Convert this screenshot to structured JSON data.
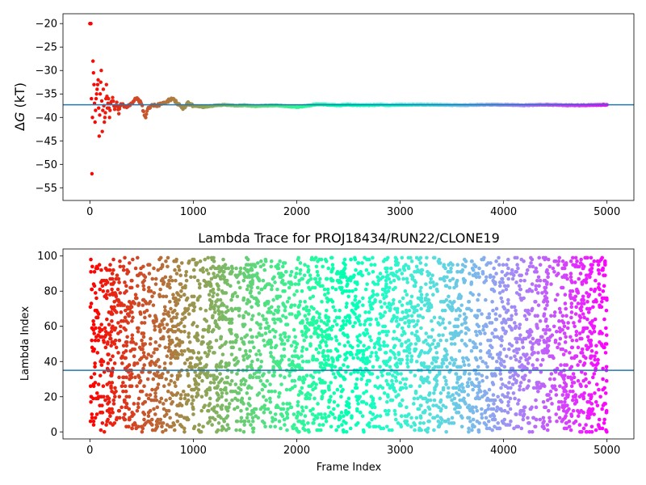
{
  "chart_data": [
    {
      "type": "scatter",
      "title": "",
      "xlabel": "",
      "ylabel": "ΔG (kT)",
      "ylabel_parts": {
        "delta": "Δ",
        "var": "G",
        "unit": " (kT)"
      },
      "xlim": [
        -260,
        5260
      ],
      "ylim": [
        -57.7,
        -17.9
      ],
      "xticks": [
        0,
        1000,
        2000,
        3000,
        4000,
        5000
      ],
      "yticks": [
        -20,
        -25,
        -30,
        -35,
        -40,
        -45,
        -50,
        -55
      ],
      "hline": -37.3,
      "hline_color": "#1f77b4",
      "colormap": "rainbow (frame index: red at 0 → violet at 5000)",
      "grid": false,
      "legend": "none",
      "series": [
        {
          "values_description": "running free energy estimate per frame",
          "x": [
            0,
            10,
            20,
            30,
            40,
            50,
            60,
            70,
            80,
            90,
            100,
            110,
            120,
            130,
            140,
            150,
            160,
            170,
            180,
            190,
            200,
            220,
            240,
            260,
            280,
            300,
            350,
            400,
            450,
            500,
            520,
            540,
            560,
            600,
            650,
            700,
            750,
            800,
            850,
            900,
            950,
            1000,
            1100,
            1200,
            1300,
            1400,
            1500,
            1600,
            1700,
            1800,
            1900,
            2000,
            2100,
            2200,
            2300,
            2400,
            2500,
            2600,
            2700,
            2800,
            2900,
            3000,
            3200,
            3400,
            3600,
            3800,
            4000,
            4200,
            4400,
            4600,
            4800,
            5000
          ],
          "y": [
            -20,
            -20,
            -52,
            -28,
            -33,
            -41,
            -36,
            -34,
            -32,
            -44,
            -35,
            -30,
            -43,
            -34,
            -41,
            -39,
            -33,
            -38,
            -36,
            -40,
            -37,
            -36,
            -38,
            -37,
            -39,
            -37,
            -38,
            -37,
            -36,
            -37,
            -39,
            -40,
            -38,
            -37.5,
            -37.5,
            -37,
            -36.5,
            -36,
            -37,
            -38,
            -37,
            -37.5,
            -37.8,
            -37.5,
            -37.3,
            -37.5,
            -37.4,
            -37.6,
            -37.5,
            -37.4,
            -37.6,
            -37.8,
            -37.5,
            -37.2,
            -37.3,
            -37.4,
            -37.3,
            -37.4,
            -37.4,
            -37.3,
            -37.4,
            -37.3,
            -37.3,
            -37.3,
            -37.4,
            -37.3,
            -37.3,
            -37.4,
            -37.3,
            -37.4,
            -37.4,
            -37.3
          ]
        }
      ]
    },
    {
      "type": "scatter",
      "title": "Lambda Trace for PROJ18434/RUN22/CLONE19",
      "xlabel": "Frame Index",
      "ylabel": "Lambda Index",
      "xlim": [
        -260,
        5260
      ],
      "ylim": [
        -4,
        104
      ],
      "xticks": [
        0,
        1000,
        2000,
        3000,
        4000,
        5000
      ],
      "yticks": [
        0,
        20,
        40,
        60,
        80,
        100
      ],
      "hline": 35,
      "hline_color": "#1f77b4",
      "colormap": "rainbow (frame index: red at 0 → violet at 5000)",
      "grid": false,
      "legend": "none",
      "series": [
        {
          "values_description": "lambda index visited at each frame; points spread roughly uniformly over 0-99 for frames 0-5000",
          "x_range": [
            0,
            5000
          ],
          "y_range": [
            0,
            99
          ],
          "n_points": 4000
        }
      ]
    }
  ]
}
